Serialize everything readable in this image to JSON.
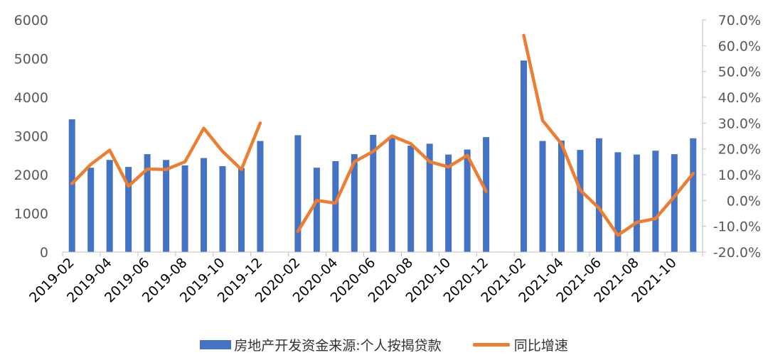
{
  "colors": {
    "bar": "#4472C4",
    "line": "#ED7D31",
    "axis": "#BFBFBF",
    "tick_text": "#595959"
  },
  "chart_data": {
    "type": "bar",
    "x": [
      "2019-02",
      "2019-03",
      "2019-04",
      "2019-05",
      "2019-06",
      "2019-07",
      "2019-08",
      "2019-09",
      "2019-10",
      "2019-11",
      "2019-12",
      "2020-01",
      "2020-02",
      "2020-03",
      "2020-04",
      "2020-05",
      "2020-06",
      "2020-07",
      "2020-08",
      "2020-09",
      "2020-10",
      "2020-11",
      "2020-12",
      "2021-01",
      "2021-02",
      "2021-03",
      "2021-04",
      "2021-05",
      "2021-06",
      "2021-07",
      "2021-08",
      "2021-09",
      "2021-10",
      "2021-11"
    ],
    "x_tick_labels": [
      "2019-02",
      "2019-04",
      "2019-06",
      "2019-08",
      "2019-10",
      "2019-12",
      "2020-02",
      "2020-04",
      "2020-06",
      "2020-08",
      "2020-10",
      "2020-12",
      "2021-02",
      "2021-04",
      "2021-06",
      "2021-08",
      "2021-10"
    ],
    "y_left_ticks": [
      "0",
      "1000",
      "2000",
      "3000",
      "4000",
      "5000",
      "6000"
    ],
    "y_right_ticks": [
      "-20.0%",
      "-10.0%",
      "0.0%",
      "10.0%",
      "20.0%",
      "30.0%",
      "40.0%",
      "50.0%",
      "60.0%",
      "70.0%"
    ],
    "ylim_left": [
      0,
      6000
    ],
    "ylim_right": [
      -0.2,
      0.7
    ],
    "series": [
      {
        "name": "房地产开发资金来源:个人按揭贷款",
        "type": "bar",
        "axis": "left",
        "values": [
          3430,
          2180,
          2380,
          2200,
          2530,
          2380,
          2240,
          2430,
          2220,
          2170,
          2870,
          null,
          3020,
          2180,
          2350,
          2530,
          3030,
          2960,
          2750,
          2800,
          2520,
          2650,
          2970,
          null,
          4950,
          2870,
          2880,
          2640,
          2940,
          2580,
          2520,
          2620,
          2530,
          2940
        ]
      },
      {
        "name": "同比增速",
        "type": "line",
        "axis": "right",
        "values": [
          0.065,
          0.14,
          0.195,
          0.055,
          0.122,
          0.12,
          0.15,
          0.28,
          0.19,
          0.12,
          0.3,
          null,
          -0.12,
          0.0,
          -0.01,
          0.15,
          0.19,
          0.25,
          0.22,
          0.15,
          0.13,
          0.175,
          0.035,
          null,
          0.64,
          0.31,
          0.22,
          0.04,
          -0.03,
          -0.135,
          -0.085,
          -0.07,
          0.015,
          0.105
        ]
      }
    ],
    "legend_position": "bottom",
    "grid": false
  }
}
